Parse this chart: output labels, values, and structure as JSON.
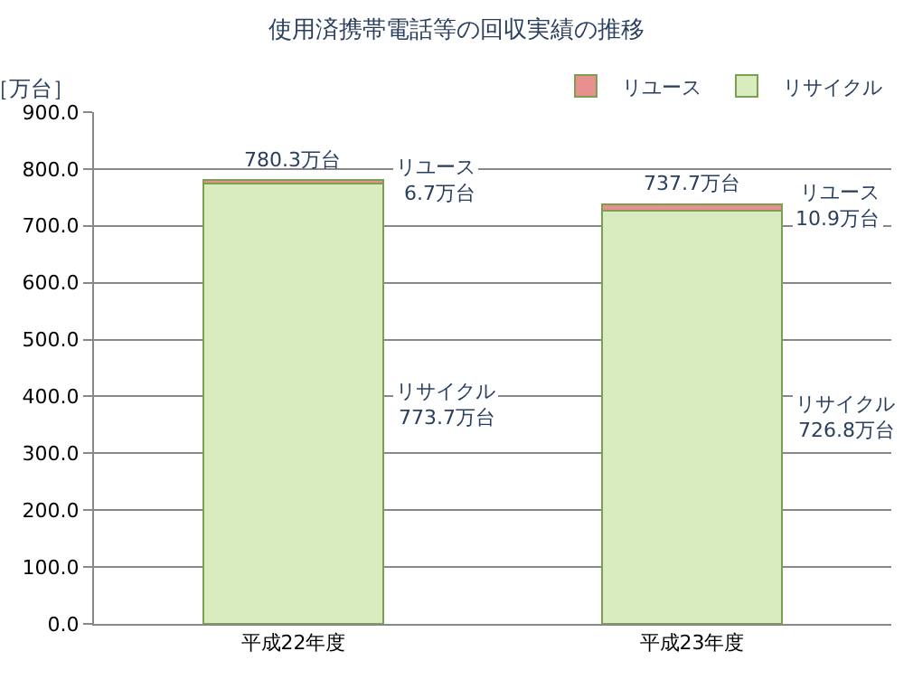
{
  "chart_data": {
    "type": "bar",
    "title": "使用済携帯電話等の回収実績の推移",
    "ylabel": "［万台］",
    "stacked": true,
    "categories": [
      "平成22年度",
      "平成23年度"
    ],
    "series": [
      {
        "name": "リサイクル",
        "color": "#d8ecc0",
        "values": [
          773.7,
          726.8
        ]
      },
      {
        "name": "リユース",
        "color": "#e89090",
        "values": [
          6.7,
          10.9
        ]
      }
    ],
    "totals": [
      "780.3万台",
      "737.7万台"
    ],
    "annotations": [
      "リユース\n6.7万台",
      "リサイクル\n773.7万台",
      "リユース\n10.9万台",
      "リサイクル\n726.8万台"
    ],
    "ylim": [
      0,
      900
    ],
    "yticks": [
      {
        "value": 0,
        "label": "0.0"
      },
      {
        "value": 100,
        "label": "100.0"
      },
      {
        "value": 200,
        "label": "200.0"
      },
      {
        "value": 300,
        "label": "300.0"
      },
      {
        "value": 400,
        "label": "400.0"
      },
      {
        "value": 500,
        "label": "500.0"
      },
      {
        "value": 600,
        "label": "600.0"
      },
      {
        "value": 700,
        "label": "700.0"
      },
      {
        "value": 800,
        "label": "800.0"
      },
      {
        "value": 900,
        "label": "900.0"
      }
    ],
    "grid": "y",
    "legend": "top right"
  }
}
